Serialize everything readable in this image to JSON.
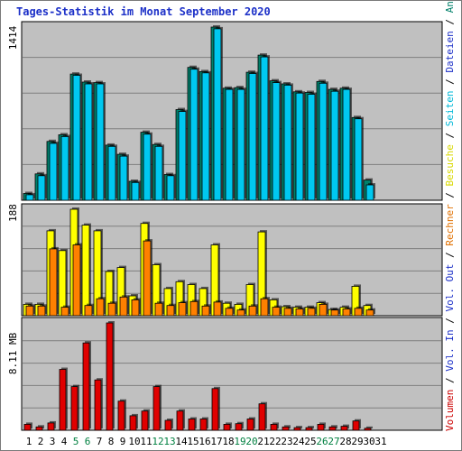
{
  "title": "Tages-Statistik im Monat September 2020",
  "panels": {
    "top_max_label": "1414",
    "mid_max_label": "188",
    "bot_max_label": "8.11 MB"
  },
  "legend_right": [
    {
      "text": "Volumen",
      "color": "#cc0000"
    },
    {
      "text": " / ",
      "color": "#000000"
    },
    {
      "text": "Vol. In",
      "color": "#1c30c8"
    },
    {
      "text": " / ",
      "color": "#000000"
    },
    {
      "text": "Vol. Out",
      "color": "#1c30c8"
    },
    {
      "text": " / ",
      "color": "#000000"
    },
    {
      "text": "Rechner",
      "color": "#e07000"
    },
    {
      "text": " / ",
      "color": "#000000"
    },
    {
      "text": "Besuche",
      "color": "#d8d800"
    },
    {
      "text": " / ",
      "color": "#000000"
    },
    {
      "text": "Seiten",
      "color": "#00b8d8"
    },
    {
      "text": " / ",
      "color": "#000000"
    },
    {
      "text": "Dateien",
      "color": "#1c30c8"
    },
    {
      "text": " / ",
      "color": "#000000"
    },
    {
      "text": "Anfragen",
      "color": "#00806a"
    }
  ],
  "colors": {
    "anfragen": "#00806a",
    "dateien": "#1c30c8",
    "seiten": "#00c8f0",
    "besuche": "#ffff00",
    "rechner": "#ff8000",
    "volumen": "#e00000",
    "plot_bg": "#c0c0c0",
    "weekend_label": "#008040",
    "weekday_label": "#000000"
  },
  "chart_data": {
    "type": "bar",
    "categories": [
      "1",
      "2",
      "3",
      "4",
      "5",
      "6",
      "7",
      "8",
      "9",
      "10",
      "11",
      "12",
      "13",
      "14",
      "15",
      "16",
      "17",
      "18",
      "19",
      "20",
      "21",
      "22",
      "23",
      "24",
      "25",
      "26",
      "27",
      "28",
      "29",
      "30",
      "31"
    ],
    "weekend_days": [
      "5",
      "6",
      "12",
      "13",
      "19",
      "20",
      "26",
      "27"
    ],
    "panels": [
      {
        "name": "top",
        "ymax": 1414,
        "series": [
          {
            "name": "Anfragen",
            "values": [
              55,
              215,
              480,
              535,
              1030,
              965,
              960,
              450,
              375,
              155,
              555,
              455,
              210,
              740,
              1085,
              1050,
              1414,
              915,
              920,
              1045,
              1185,
              975,
              950,
              885,
              880,
              970,
              905,
              915,
              675,
              165,
              0
            ]
          },
          {
            "name": "Seiten",
            "values": [
              45,
              200,
              465,
              520,
              1020,
              950,
              950,
              440,
              360,
              145,
              540,
              440,
              200,
              725,
              1070,
              1040,
              1400,
              905,
              905,
              1035,
              1170,
              960,
              940,
              875,
              865,
              955,
              890,
              905,
              665,
              125,
              0
            ]
          }
        ]
      },
      {
        "name": "mid",
        "ymax": 188,
        "series": [
          {
            "name": "Besuche",
            "values": [
              20,
              20,
              150,
              115,
              188,
              160,
              150,
              78,
              85,
              35,
              163,
              90,
              48,
              60,
              55,
              48,
              125,
              22,
              20,
              55,
              148,
              28,
              16,
              15,
              15,
              23,
              11,
              15,
              52,
              18,
              0
            ]
          },
          {
            "name": "Rechner",
            "values": [
              17,
              17,
              118,
              15,
              125,
              18,
              30,
              22,
              33,
              28,
              132,
              22,
              18,
              23,
              25,
              17,
              24,
              13,
              10,
              17,
              30,
              15,
              13,
              12,
              13,
              20,
              10,
              12,
              13,
              10,
              0
            ]
          }
        ]
      },
      {
        "name": "bottom",
        "ymax": 8.11,
        "unit": "MB",
        "series": [
          {
            "name": "Volumen",
            "values": [
              0.45,
              0.25,
              0.55,
              4.6,
              3.3,
              6.6,
              3.8,
              8.11,
              2.2,
              1.1,
              1.45,
              3.3,
              0.75,
              1.45,
              0.85,
              0.85,
              3.15,
              0.45,
              0.5,
              0.85,
              2.0,
              0.45,
              0.25,
              0.2,
              0.2,
              0.45,
              0.25,
              0.3,
              0.7,
              0.15,
              0
            ]
          }
        ]
      }
    ]
  }
}
